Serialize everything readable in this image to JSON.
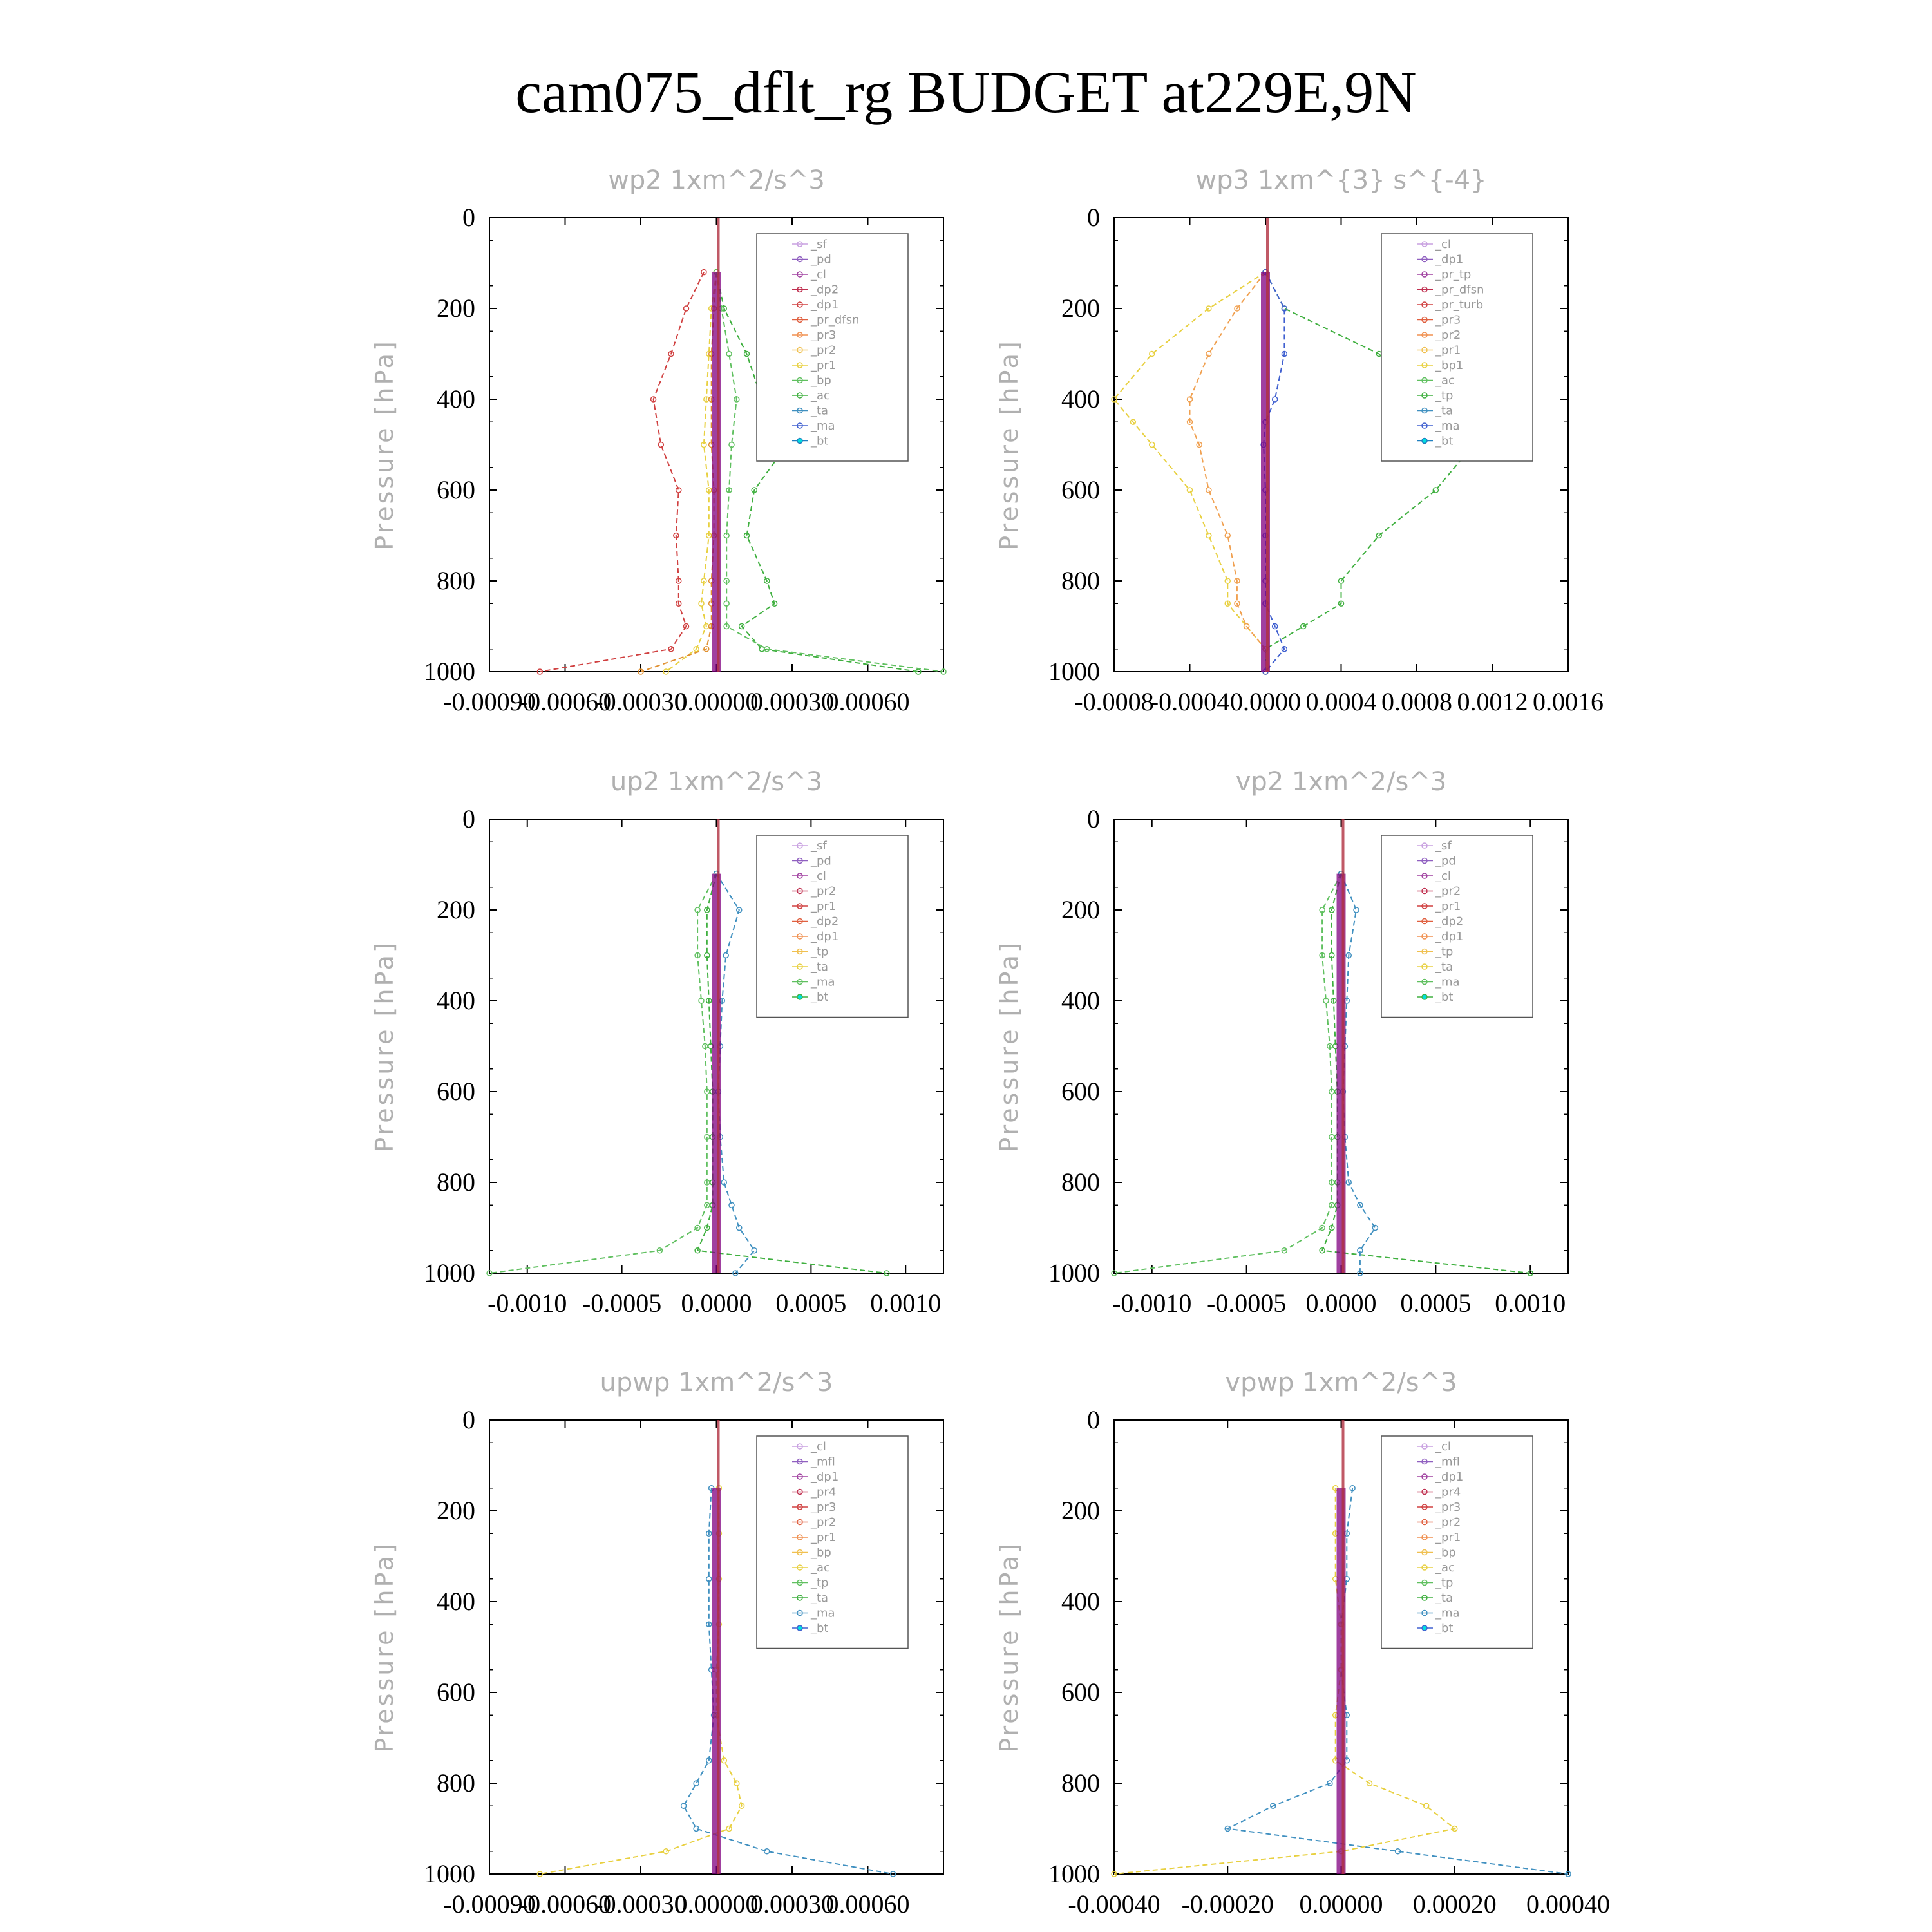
{
  "title": "cam075_dflt_rg  BUDGET at229E,9N",
  "chart_data": [
    {
      "type": "line",
      "title": "wp2   1xm^2/s^3",
      "ylabel": "Pressure [hPa]",
      "ylim": [
        0,
        1000
      ],
      "y_inverted": true,
      "xlim": [
        -0.0009,
        0.0009
      ],
      "xticks": [
        -0.0009,
        -0.0006,
        -0.0003,
        0.0,
        0.0003,
        0.0006
      ],
      "xtick_labels": [
        "-0.00090",
        "-0.00060",
        "-0.00030",
        "0.00000",
        "0.00030",
        "0.00060"
      ],
      "yticks": [
        0,
        200,
        400,
        600,
        800,
        1000
      ],
      "legend_position": "top-right",
      "legend": [
        "_sf",
        "_pd",
        "_cl",
        "_dp2",
        "_dp1",
        "_pr_dfsn",
        "_pr3",
        "_pr2",
        "_pr1",
        "_bp",
        "_ac",
        "_ta",
        "_ma",
        "_bt"
      ],
      "y": [
        120,
        200,
        300,
        400,
        500,
        600,
        700,
        800,
        850,
        900,
        950,
        1000
      ],
      "series": [
        {
          "name": "_dp1",
          "color": "#d04040",
          "x": [
            -5e-05,
            -0.00012,
            -0.00018,
            -0.00025,
            -0.00022,
            -0.00015,
            -0.00016,
            -0.00015,
            -0.00015,
            -0.00012,
            -0.00018,
            -0.0007
          ]
        },
        {
          "name": "_bp",
          "color": "#40b040",
          "x": [
            0.0,
            3e-05,
            0.00012,
            0.00018,
            0.00028,
            0.00015,
            0.00012,
            0.0002,
            0.00023,
            0.0001,
            0.00018,
            0.0008
          ]
        },
        {
          "name": "_pr1",
          "color": "#e8d040",
          "x": [
            0.0,
            -2e-05,
            -3e-05,
            -4e-05,
            -5e-05,
            -3e-05,
            -3e-05,
            -5e-05,
            -6e-05,
            -4e-05,
            -8e-05,
            -0.0002
          ]
        },
        {
          "name": "_pr3",
          "color": "#e09030",
          "x": [
            0.0,
            -1e-05,
            -2e-05,
            -2e-05,
            -2e-05,
            -1e-05,
            -1e-05,
            -2e-05,
            -2e-05,
            -2e-05,
            -4e-05,
            -0.0003
          ]
        },
        {
          "name": "_ac",
          "color": "#60c060",
          "x": [
            0.0,
            2e-05,
            5e-05,
            8e-05,
            6e-05,
            5e-05,
            4e-05,
            4e-05,
            4e-05,
            4e-05,
            0.0002,
            0.0009
          ]
        },
        {
          "name": "_bt",
          "color": "#800080",
          "x": [
            0,
            0,
            0,
            0,
            0,
            0,
            0,
            0,
            0,
            0,
            0,
            0
          ]
        }
      ]
    },
    {
      "type": "line",
      "title": "wp3   1xm^{3} s^{-4}",
      "ylabel": "Pressure [hPa]",
      "ylim": [
        0,
        1000
      ],
      "y_inverted": true,
      "xlim": [
        -0.0008,
        0.0016
      ],
      "xticks": [
        -0.0008,
        -0.0004,
        0.0,
        0.0004,
        0.0008,
        0.0012,
        0.0016
      ],
      "xtick_labels": [
        "-0.0008",
        "-0.0004",
        "0.0000",
        "0.0004",
        "0.0008",
        "0.0012",
        "0.0016"
      ],
      "yticks": [
        0,
        200,
        400,
        600,
        800,
        1000
      ],
      "legend_position": "top-right",
      "legend": [
        "_cl",
        "_dp1",
        "_pr_tp",
        "_pr_dfsn",
        "_pr_turb",
        "_pr3",
        "_pr2",
        "_pr1",
        "_bp1",
        "_ac",
        "_tp",
        "_ta",
        "_ma",
        "_bt"
      ],
      "y": [
        120,
        200,
        300,
        400,
        450,
        500,
        600,
        700,
        800,
        850,
        900,
        950,
        1000
      ],
      "series": [
        {
          "name": "_bp1",
          "color": "#40b040",
          "x": [
            0.0,
            0.0001,
            0.0006,
            0.0012,
            0.0013,
            0.0011,
            0.0009,
            0.0006,
            0.0004,
            0.0004,
            0.0002,
            0.0,
            0.0
          ]
        },
        {
          "name": "_pr1",
          "color": "#e8d040",
          "x": [
            0.0,
            -0.0003,
            -0.0006,
            -0.0008,
            -0.0007,
            -0.0006,
            -0.0004,
            -0.0003,
            -0.0002,
            -0.0002,
            -0.0001,
            0.0,
            0.0
          ]
        },
        {
          "name": "_pr2",
          "color": "#f0a050",
          "x": [
            0.0,
            -0.00015,
            -0.0003,
            -0.0004,
            -0.0004,
            -0.00035,
            -0.0003,
            -0.0002,
            -0.00015,
            -0.00015,
            -0.0001,
            0.0,
            0.0
          ]
        },
        {
          "name": "_tp",
          "color": "#4060d0",
          "x": [
            0.0,
            0.0001,
            0.0001,
            5e-05,
            0.0,
            -1e-05,
            0.0,
            0.0,
            0.0,
            0.0,
            5e-05,
            0.0001,
            0.0
          ]
        },
        {
          "name": "_bt",
          "color": "#800080",
          "x": [
            0,
            0,
            0,
            0,
            0,
            0,
            0,
            0,
            0,
            0,
            0,
            0,
            0
          ]
        }
      ]
    },
    {
      "type": "line",
      "title": "up2   1xm^2/s^3",
      "ylabel": "Pressure [hPa]",
      "ylim": [
        0,
        1000
      ],
      "y_inverted": true,
      "xlim": [
        -0.0012,
        0.0012
      ],
      "xticks": [
        -0.001,
        -0.0005,
        0.0,
        0.0005,
        0.001
      ],
      "xtick_labels": [
        "-0.0010",
        "-0.0005",
        "0.0000",
        "0.0005",
        "0.0010"
      ],
      "yticks": [
        0,
        200,
        400,
        600,
        800,
        1000
      ],
      "legend_position": "top-right",
      "legend": [
        "_sf",
        "_pd",
        "_cl",
        "_pr2",
        "_pr1",
        "_dp2",
        "_dp1",
        "_tp",
        "_ta",
        "_ma",
        "_bt"
      ],
      "y": [
        120,
        200,
        300,
        400,
        500,
        600,
        700,
        800,
        850,
        900,
        950,
        1000
      ],
      "series": [
        {
          "name": "_dp1",
          "color": "#60c060",
          "x": [
            0.0,
            -0.0001,
            -0.0001,
            -8e-05,
            -6e-05,
            -5e-05,
            -5e-05,
            -5e-05,
            -5e-05,
            -0.0001,
            -0.0003,
            -0.0012
          ]
        },
        {
          "name": "_dp2",
          "color": "#40b040",
          "x": [
            0.0,
            -5e-05,
            -5e-05,
            -4e-05,
            -3e-05,
            -2e-05,
            -2e-05,
            -2e-05,
            -2e-05,
            -5e-05,
            -0.0001,
            0.0009
          ]
        },
        {
          "name": "_tp",
          "color": "#4090c0",
          "x": [
            0.0,
            0.00012,
            5e-05,
            3e-05,
            2e-05,
            1e-05,
            2e-05,
            4e-05,
            8e-05,
            0.00012,
            0.0002,
            0.0001
          ]
        },
        {
          "name": "_bt",
          "color": "#800080",
          "x": [
            0,
            0,
            0,
            0,
            0,
            0,
            0,
            0,
            0,
            0,
            0,
            0
          ]
        }
      ]
    },
    {
      "type": "line",
      "title": "vp2   1xm^2/s^3",
      "ylabel": "Pressure [hPa]",
      "ylim": [
        0,
        1000
      ],
      "y_inverted": true,
      "xlim": [
        -0.0012,
        0.0012
      ],
      "xticks": [
        -0.001,
        -0.0005,
        0.0,
        0.0005,
        0.001
      ],
      "xtick_labels": [
        "-0.0010",
        "-0.0005",
        "0.0000",
        "0.0005",
        "0.0010"
      ],
      "yticks": [
        0,
        200,
        400,
        600,
        800,
        1000
      ],
      "legend_position": "top-right",
      "legend": [
        "_sf",
        "_pd",
        "_cl",
        "_pr2",
        "_pr1",
        "_dp2",
        "_dp1",
        "_tp",
        "_ta",
        "_ma",
        "_bt"
      ],
      "y": [
        120,
        200,
        300,
        400,
        500,
        600,
        700,
        800,
        850,
        900,
        950,
        1000
      ],
      "series": [
        {
          "name": "_dp1",
          "color": "#60c060",
          "x": [
            0.0,
            -0.0001,
            -0.0001,
            -8e-05,
            -6e-05,
            -5e-05,
            -5e-05,
            -5e-05,
            -5e-05,
            -0.0001,
            -0.0003,
            -0.0012
          ]
        },
        {
          "name": "_dp2",
          "color": "#40b040",
          "x": [
            0.0,
            -5e-05,
            -5e-05,
            -4e-05,
            -3e-05,
            -2e-05,
            -2e-05,
            -2e-05,
            -2e-05,
            -5e-05,
            -0.0001,
            0.001
          ]
        },
        {
          "name": "_tp",
          "color": "#4090c0",
          "x": [
            0.0,
            8e-05,
            4e-05,
            3e-05,
            2e-05,
            1e-05,
            2e-05,
            4e-05,
            0.0001,
            0.00018,
            0.0001,
            0.0001
          ]
        },
        {
          "name": "_bt",
          "color": "#800080",
          "x": [
            0,
            0,
            0,
            0,
            0,
            0,
            0,
            0,
            0,
            0,
            0,
            0
          ]
        }
      ]
    },
    {
      "type": "line",
      "title": "upwp   1xm^2/s^3",
      "ylabel": "Pressure [hPa]",
      "ylim": [
        0,
        1000
      ],
      "y_inverted": true,
      "xlim": [
        -0.0009,
        0.0009
      ],
      "xticks": [
        -0.0009,
        -0.0006,
        -0.0003,
        0.0,
        0.0003,
        0.0006
      ],
      "xtick_labels": [
        "-0.00090",
        "-0.00060",
        "-0.00030",
        "0.00000",
        "0.00030",
        "0.00060"
      ],
      "yticks": [
        0,
        200,
        400,
        600,
        800,
        1000
      ],
      "legend_position": "top-right",
      "legend": [
        "_cl",
        "_mfl",
        "_dp1",
        "_pr4",
        "_pr3",
        "_pr2",
        "_pr1",
        "_bp",
        "_ac",
        "_tp",
        "_ta",
        "_ma",
        "_bt"
      ],
      "y": [
        150,
        250,
        350,
        450,
        550,
        650,
        750,
        800,
        850,
        900,
        950,
        1000
      ],
      "series": [
        {
          "name": "_tp",
          "color": "#4090c0",
          "x": [
            -2e-05,
            -3e-05,
            -3e-05,
            -3e-05,
            -2e-05,
            -1e-05,
            -3e-05,
            -8e-05,
            -0.00013,
            -8e-05,
            0.0002,
            0.0007
          ]
        },
        {
          "name": "_pr1",
          "color": "#e8d040",
          "x": [
            1e-05,
            1e-05,
            1e-05,
            1e-05,
            0.0,
            0.0,
            3e-05,
            8e-05,
            0.0001,
            5e-05,
            -0.0002,
            -0.0007
          ]
        },
        {
          "name": "_bt",
          "color": "#800080",
          "x": [
            0,
            0,
            0,
            0,
            0,
            0,
            0,
            0,
            0,
            0,
            0,
            0
          ]
        }
      ]
    },
    {
      "type": "line",
      "title": "vpwp   1xm^2/s^3",
      "ylabel": "Pressure [hPa]",
      "ylim": [
        0,
        1000
      ],
      "y_inverted": true,
      "xlim": [
        -0.0004,
        0.0004
      ],
      "xticks": [
        -0.0004,
        -0.0002,
        0.0,
        0.0002,
        0.0004
      ],
      "xtick_labels": [
        "-0.00040",
        "-0.00020",
        "0.00000",
        "0.00020",
        "0.00040"
      ],
      "yticks": [
        0,
        200,
        400,
        600,
        800,
        1000
      ],
      "legend_position": "top-right",
      "legend": [
        "_cl",
        "_mfl",
        "_dp1",
        "_pr4",
        "_pr3",
        "_pr2",
        "_pr1",
        "_bp",
        "_ac",
        "_tp",
        "_ta",
        "_ma",
        "_bt"
      ],
      "y": [
        150,
        250,
        350,
        450,
        550,
        650,
        750,
        800,
        850,
        900,
        950,
        1000
      ],
      "series": [
        {
          "name": "_tp",
          "color": "#4090c0",
          "x": [
            2e-05,
            1e-05,
            1e-05,
            0.0,
            0.0,
            1e-05,
            1e-05,
            -2e-05,
            -0.00012,
            -0.0002,
            0.0001,
            0.0004
          ]
        },
        {
          "name": "_pr1",
          "color": "#e8d040",
          "x": [
            -1e-05,
            -1e-05,
            -1e-05,
            0.0,
            0.0,
            -1e-05,
            -1e-05,
            5e-05,
            0.00015,
            0.0002,
            0.0,
            -0.0004
          ]
        },
        {
          "name": "_bt",
          "color": "#800080",
          "x": [
            0,
            0,
            0,
            0,
            0,
            0,
            0,
            0,
            0,
            0,
            0,
            0
          ]
        }
      ]
    }
  ]
}
